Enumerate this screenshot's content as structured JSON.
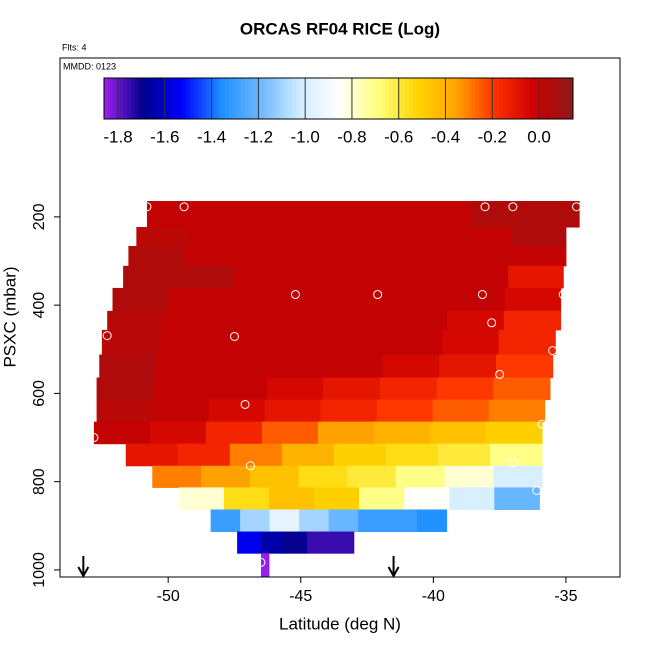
{
  "chart_data": {
    "type": "curtain",
    "title": "ORCAS RF04 RICE (Log)",
    "annotations": [
      "Flts: 4",
      "MMDD: 0123"
    ],
    "x_label": "Latitude (deg N)",
    "y_label": "PSXC (mbar)",
    "xlim": [
      -54.08,
      -32.96
    ],
    "xticks": [
      -50,
      -45,
      -40,
      -35
    ],
    "ylim": [
      -160,
      1016
    ],
    "y_reversed": true,
    "yticks": [
      200,
      400,
      600,
      800,
      1000
    ],
    "colorbar": {
      "lim": [
        -1.86,
        0.145
      ],
      "ticks": [
        -1.8,
        -1.6,
        -1.4,
        -1.2,
        {
          "value": -1,
          "label": "-1.0"
        },
        -0.8,
        -0.6,
        -0.4,
        -0.2,
        {
          "value": 0,
          "label": "0.0"
        }
      ],
      "colors": [
        "#a020f0",
        "#00008b",
        "#0000ff",
        "#1e90ff",
        "#6cb8ff",
        "#d0ecff",
        "#ffffff",
        "#ffff80",
        "#ffd700",
        "#ffa500",
        "#ff3000",
        "#cc0000",
        "#8b1a1a"
      ]
    },
    "rows": [
      {
        "p": [
          164,
          223
        ],
        "lat": [
          -50.8,
          -34.5
        ],
        "values": [
          0.0,
          0.0,
          0.0,
          0.0,
          0.0,
          0.0,
          0.05,
          0.05
        ]
      },
      {
        "p": [
          223,
          266
        ],
        "lat": [
          -51.2,
          -35.0
        ],
        "values": [
          0.02,
          0.0,
          0.0,
          0.0,
          0.0,
          0.0,
          0.0,
          0.05
        ]
      },
      {
        "p": [
          266,
          311
        ],
        "lat": [
          -51.5,
          -35.0
        ],
        "values": [
          0.05,
          0.0,
          0.0,
          0.0,
          0.0,
          0.0,
          0.0,
          0.0
        ]
      },
      {
        "p": [
          311,
          361
        ],
        "lat": [
          -51.7,
          -35.1
        ],
        "values": [
          0.05,
          0.05,
          0.0,
          0.0,
          0.0,
          0.0,
          0.0,
          -0.1
        ]
      },
      {
        "p": [
          361,
          413
        ],
        "lat": [
          -52.1,
          -35.2
        ],
        "values": [
          0.05,
          0.0,
          0.0,
          0.0,
          0.0,
          0.0,
          0.0,
          -0.05
        ]
      },
      {
        "p": [
          413,
          456
        ],
        "lat": [
          -52.3,
          -35.2
        ],
        "values": [
          0.03,
          0.0,
          0.0,
          0.0,
          0.0,
          0.0,
          -0.05,
          -0.15
        ]
      },
      {
        "p": [
          456,
          512
        ],
        "lat": [
          -52.5,
          -35.4
        ],
        "values": [
          0.03,
          0.0,
          0.0,
          0.0,
          0.0,
          0.0,
          -0.05,
          -0.15
        ]
      },
      {
        "p": [
          512,
          564
        ],
        "lat": [
          -52.6,
          -35.5
        ],
        "values": [
          0.05,
          0.0,
          0.0,
          0.0,
          0.0,
          -0.05,
          -0.1,
          -0.2
        ]
      },
      {
        "p": [
          564,
          614
        ],
        "lat": [
          -52.7,
          -35.6
        ],
        "values": [
          0.05,
          0.0,
          0.0,
          -0.05,
          -0.1,
          -0.15,
          -0.2,
          -0.25
        ]
      },
      {
        "p": [
          614,
          664
        ],
        "lat": [
          -52.7,
          -35.8
        ],
        "values": [
          0.03,
          0.0,
          -0.05,
          -0.1,
          -0.15,
          -0.2,
          -0.25,
          -0.3
        ]
      },
      {
        "p": [
          664,
          714
        ],
        "lat": [
          -52.8,
          -35.9
        ],
        "values": [
          0.0,
          -0.05,
          -0.15,
          -0.25,
          -0.35,
          -0.4,
          -0.45,
          -0.5
        ]
      },
      {
        "p": [
          714,
          764
        ],
        "lat": [
          -51.6,
          -35.9
        ],
        "values": [
          -0.1,
          -0.15,
          -0.3,
          -0.4,
          -0.5,
          -0.55,
          -0.6,
          -0.7
        ]
      },
      {
        "p": [
          764,
          813
        ],
        "lat": [
          -50.6,
          -35.9
        ],
        "values": [
          -0.3,
          -0.35,
          -0.45,
          -0.55,
          -0.6,
          -0.7,
          -0.8,
          -1.0
        ]
      },
      {
        "p": [
          813,
          863
        ],
        "lat": [
          -49.6,
          -36.0
        ],
        "values": [
          -0.8,
          -0.55,
          -0.45,
          -0.5,
          -0.7,
          -0.85,
          -1.0,
          -1.2
        ]
      },
      {
        "p": [
          863,
          913
        ],
        "lat": [
          -48.4,
          -39.5
        ],
        "values": [
          -1.3,
          -1.1,
          -0.95,
          -1.1,
          -1.2,
          -1.3,
          -1.3,
          -1.35
        ]
      },
      {
        "p": [
          913,
          962
        ],
        "lat": [
          -47.4,
          -43.0
        ],
        "values": [
          -1.55,
          -1.65,
          -1.7,
          -1.75,
          -1.75
        ]
      },
      {
        "p": [
          962,
          1014
        ],
        "lat": [
          -46.5,
          -46.2
        ],
        "values": [
          -1.85
        ]
      }
    ],
    "points": {
      "lat": [
        -50.8,
        -49.4,
        -38.05,
        -37,
        -34.6,
        -45.2,
        -42.1,
        -38.15,
        -35.1,
        -37.8,
        -52.3,
        -47.5,
        -35.5,
        -37.5,
        -47.1,
        -52.8,
        -35.9,
        -46.9,
        -37,
        -36.1,
        -46.5
      ],
      "p": [
        177,
        177,
        177,
        177,
        177,
        376,
        376,
        376,
        376,
        440,
        469,
        471,
        503,
        557,
        625,
        700,
        670,
        764,
        757,
        820,
        983
      ]
    },
    "arrows_lat": [
      -53.2,
      -41.5
    ]
  }
}
